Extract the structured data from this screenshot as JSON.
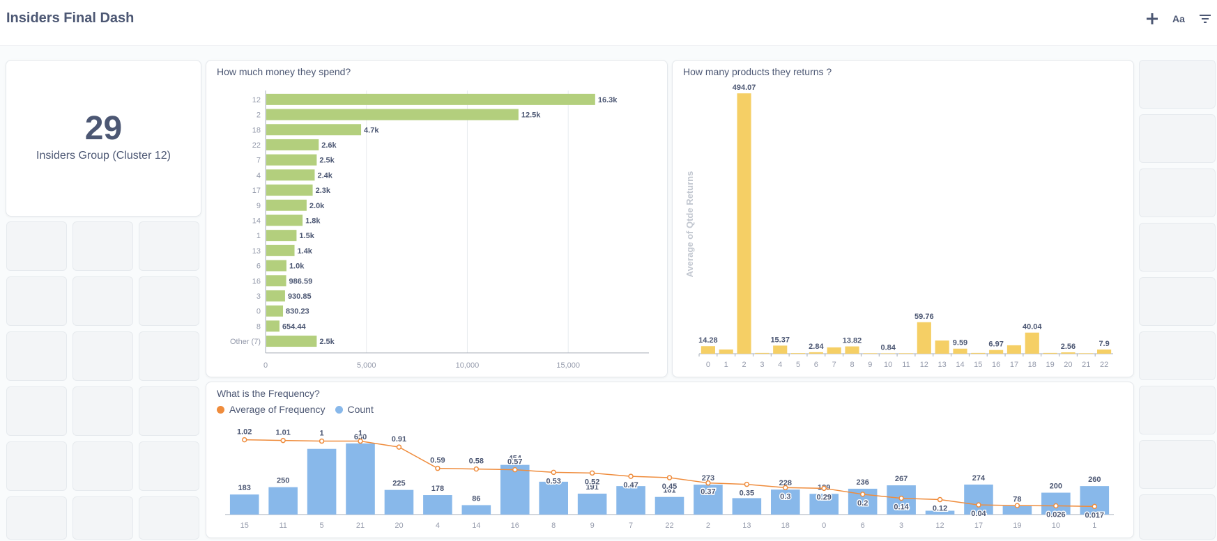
{
  "header": {
    "title": "Insiders Final Dash",
    "actions": [
      {
        "icon": "plus-icon",
        "label": "+"
      },
      {
        "icon": "text-format-icon",
        "label": "Aa"
      },
      {
        "icon": "filter-icon",
        "label": ""
      }
    ]
  },
  "colors": {
    "green": "#b3cf7d",
    "yellow": "#f5cf65",
    "blue": "#88b8ea",
    "orange": "#ef8c3c",
    "text": "#4c5773",
    "muted": "#949aab"
  },
  "scalar_card": {
    "value": "29",
    "label": "Insiders Group (Cluster 12)"
  },
  "money_card": {
    "title": "How much money they spend?"
  },
  "returns_card": {
    "title": "How many products they returns ?"
  },
  "frequency_card": {
    "title": "What is the Frequency?"
  },
  "chart_data": [
    {
      "type": "bar",
      "orientation": "horizontal",
      "title": "How much money they spend?",
      "categories": [
        "12",
        "2",
        "18",
        "22",
        "7",
        "4",
        "17",
        "9",
        "14",
        "1",
        "13",
        "6",
        "16",
        "3",
        "0",
        "8",
        "Other (7)"
      ],
      "values": [
        16300,
        12500,
        4700,
        2600,
        2500,
        2400,
        2300,
        2000,
        1800,
        1500,
        1400,
        1000,
        986.59,
        930.85,
        830.23,
        654.44,
        2500
      ],
      "value_labels": [
        "16.3k",
        "12.5k",
        "4.7k",
        "2.6k",
        "2.5k",
        "2.4k",
        "2.3k",
        "2.0k",
        "1.8k",
        "1.5k",
        "1.4k",
        "1.0k",
        "986.59",
        "930.85",
        "830.23",
        "654.44",
        "2.5k"
      ],
      "xticks": [
        0,
        5000,
        10000,
        15000
      ],
      "xtick_labels": [
        "0",
        "5,000",
        "10,000",
        "15,000"
      ],
      "xlim": [
        0,
        19000
      ],
      "grid": true
    },
    {
      "type": "bar",
      "title": "How many products they returns ?",
      "ylabel": "Average of Qtde Returns",
      "categories": [
        "0",
        "1",
        "2",
        "3",
        "4",
        "5",
        "6",
        "7",
        "8",
        "9",
        "10",
        "11",
        "12",
        "13",
        "14",
        "15",
        "16",
        "17",
        "18",
        "19",
        "20",
        "21",
        "22"
      ],
      "values": [
        14.28,
        8,
        494.07,
        1.5,
        15.37,
        1.2,
        2.84,
        12,
        13.82,
        1,
        0.84,
        1,
        59.76,
        25,
        9.59,
        1.5,
        6.97,
        16,
        40.04,
        1.5,
        2.56,
        1,
        7.9
      ],
      "labels": [
        "14.28",
        "",
        "494.07",
        "",
        "15.37",
        "",
        "2.84",
        "",
        "13.82",
        "",
        "0.84",
        "",
        "59.76",
        "",
        "9.59",
        "",
        "6.97",
        "",
        "40.04",
        "",
        "2.56",
        "",
        "7.9"
      ],
      "ylim": [
        0,
        510
      ]
    },
    {
      "type": "bar+line",
      "title": "What is the Frequency?",
      "categories": [
        "15",
        "11",
        "5",
        "21",
        "20",
        "4",
        "14",
        "16",
        "8",
        "9",
        "7",
        "22",
        "2",
        "13",
        "18",
        "0",
        "6",
        "3",
        "12",
        "17",
        "19",
        "10",
        "1"
      ],
      "series": [
        {
          "name": "Count",
          "type": "bar",
          "values": [
            183,
            250,
            600,
            650,
            225,
            178,
            86,
            454,
            300,
            191,
            260,
            161,
            273,
            150,
            228,
            189,
            236,
            267,
            35,
            274,
            78,
            200,
            260
          ],
          "labels": [
            "183",
            "250",
            "",
            "650",
            "225",
            "178",
            "86",
            "454",
            "",
            "191",
            "",
            "161",
            "273",
            "",
            "228",
            "189",
            "236",
            "267",
            "",
            "274",
            "78",
            "200",
            "260"
          ]
        },
        {
          "name": "Average of Frequency",
          "type": "line",
          "values": [
            1.02,
            1.01,
            1,
            1,
            0.91,
            0.59,
            0.58,
            0.57,
            0.53,
            0.52,
            0.47,
            0.45,
            0.37,
            0.35,
            0.3,
            0.29,
            0.2,
            0.14,
            0.12,
            0.04,
            0.03,
            0.026,
            0.017
          ],
          "labels": [
            "1.02",
            "1.01",
            "1",
            "1",
            "0.91",
            "0.59",
            "0.58",
            "0.57",
            "0.53",
            "0.52",
            "0.47",
            "0.45",
            "0.37",
            "0.35",
            "0.3",
            "0.29",
            "0.2",
            "0.14",
            "0.12",
            "0.04",
            "",
            "0.026",
            "0.017"
          ]
        }
      ],
      "bar_ylim": [
        0,
        700
      ],
      "line_ylim": [
        0,
        1.1
      ]
    }
  ]
}
